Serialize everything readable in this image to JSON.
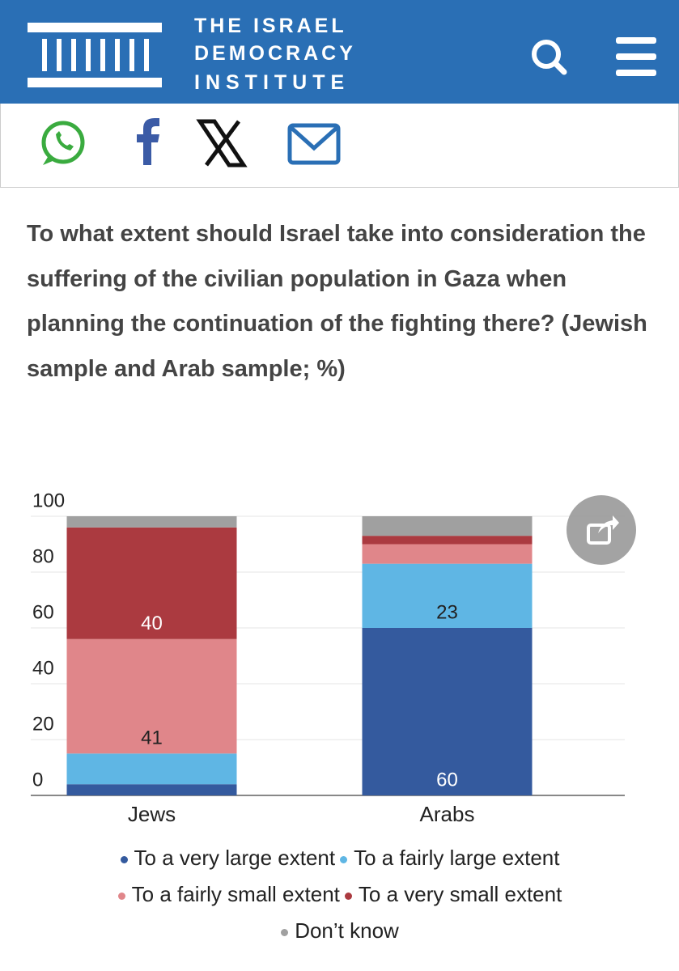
{
  "header": {
    "logo": [
      "THE ISRAEL",
      "DEMOCRACY",
      "INSTITUTE"
    ]
  },
  "chart_data": {
    "type": "stacked-bar",
    "title": "To what extent should Israel take into consideration the suffering of the civilian population in Gaza when planning the continuation of the fighting there? (Jewish sample and Arab sample; %)",
    "categories": [
      "Jews",
      "Arabs"
    ],
    "series": [
      {
        "name": "To a very large extent",
        "color": "#345a9e",
        "values": [
          4,
          60
        ]
      },
      {
        "name": "To a fairly large extent",
        "color": "#5fb6e4",
        "values": [
          11,
          23
        ]
      },
      {
        "name": "To a fairly small extent",
        "color": "#e0868a",
        "values": [
          41,
          7
        ]
      },
      {
        "name": "To a very small extent",
        "color": "#ab3a40",
        "values": [
          40,
          3
        ]
      },
      {
        "name": "Don’t know",
        "color": "#a0a0a0",
        "values": [
          4,
          7
        ]
      }
    ],
    "ylim": [
      0,
      100
    ],
    "yticks": [
      0,
      20,
      40,
      60,
      80,
      100
    ],
    "grid": true,
    "legend": "bottom"
  }
}
